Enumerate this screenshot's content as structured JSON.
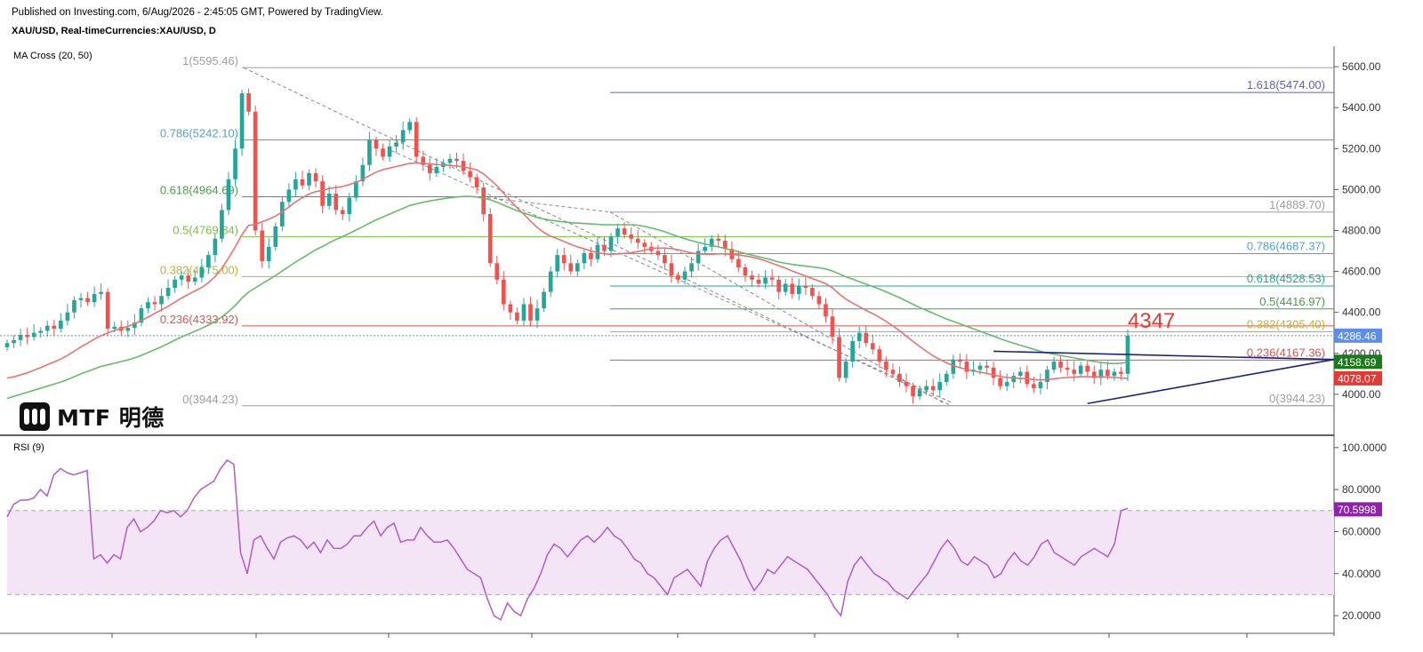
{
  "header": {
    "published": "Published on Investing.com, 6/Aug/2026 - 2:45:05 GMT, Powered by TradingView.",
    "symbol": "XAU/USD, Real-timeCurrencies:XAU/USD, D"
  },
  "logo": {
    "text": "MTF 明德"
  },
  "colors": {
    "up": "#26a69a",
    "down": "#ef5350",
    "ma20": "#e57373",
    "ma50": "#66bb6a",
    "trendline": "#1a237e",
    "rsi": "#b05cc6",
    "rsi_band": "#f3e5f5"
  },
  "chart_data": [
    {
      "type": "candlestick",
      "indicator_label": "MA Cross (20, 50)",
      "ylim": [
        3800,
        5700
      ],
      "y_ticks": [
        {
          "v": 5600,
          "label": "5600.00"
        },
        {
          "v": 5400,
          "label": "5400.00"
        },
        {
          "v": 5200,
          "label": "5200.00"
        },
        {
          "v": 5000,
          "label": "5000.00"
        },
        {
          "v": 4800,
          "label": "4800.00"
        },
        {
          "v": 4600,
          "label": "4600.00"
        },
        {
          "v": 4400,
          "label": "4400.00"
        },
        {
          "v": 4200,
          "label": "4200.00"
        },
        {
          "v": 4000,
          "label": "4000.00"
        }
      ],
      "price_badges": [
        {
          "v": 4286.46,
          "label": "4286.46",
          "color": "#5b8def"
        },
        {
          "v": 4158.69,
          "label": "4158.69",
          "color": "#1b7a1b"
        },
        {
          "v": 4078.07,
          "label": "4078.07",
          "color": "#e53935"
        }
      ],
      "annotation": {
        "text": "4347",
        "value": 4347,
        "color": "#e53935"
      },
      "fib_left": [
        {
          "ratio": "1",
          "value": 5595.46,
          "text": "1(5595.46)",
          "color": "#9e9e9e"
        },
        {
          "ratio": "0.786",
          "value": 5242.1,
          "text": "0.786(5242.10)",
          "color": "#4fa3d1"
        },
        {
          "ratio": "0.618",
          "value": 4964.69,
          "text": "0.618(4964.69)",
          "color": "#43a047"
        },
        {
          "ratio": "0.5",
          "value": 4769.84,
          "text": "0.5(4769.84)",
          "color": "#76c043"
        },
        {
          "ratio": "0.382",
          "value": 4575.0,
          "text": "0.382(4575.00)",
          "color": "#b7b53a"
        },
        {
          "ratio": "0.236",
          "value": 4333.92,
          "text": "0.236(4333.92)",
          "color": "#d9534f"
        },
        {
          "ratio": "0",
          "value": 3944.23,
          "text": "0(3944.23)",
          "color": "#9e9e9e"
        }
      ],
      "fib_right": [
        {
          "ratio": "1.618",
          "value": 5474.0,
          "text": "1.618(5474.00)",
          "color": "#5c5fc6"
        },
        {
          "ratio": "1",
          "value": 4889.7,
          "text": "1(4889.70)",
          "color": "#9e9e9e"
        },
        {
          "ratio": "0.786",
          "value": 4687.37,
          "text": "0.786(4687.37)",
          "color": "#4fa3d1"
        },
        {
          "ratio": "0.618",
          "value": 4528.53,
          "text": "0.618(4528.53)",
          "color": "#26a69a"
        },
        {
          "ratio": "0.5",
          "value": 4416.97,
          "text": "0.5(4416.97)",
          "color": "#43a047"
        },
        {
          "ratio": "0.382",
          "value": 4305.4,
          "text": "0.382(4305.40)",
          "color": "#b7b53a"
        },
        {
          "ratio": "0.236",
          "value": 4167.36,
          "text": "0.236(4167.36)",
          "color": "#d9534f"
        },
        {
          "ratio": "0",
          "value": 3944.23,
          "text": "0(3944.23)",
          "color": "#9e9e9e"
        }
      ],
      "closes": [
        4250,
        4265,
        4290,
        4280,
        4300,
        4310,
        4335,
        4320,
        4360,
        4400,
        4460,
        4470,
        4450,
        4490,
        4500,
        4320,
        4330,
        4310,
        4325,
        4350,
        4420,
        4450,
        4440,
        4480,
        4520,
        4560,
        4580,
        4550,
        4570,
        4620,
        4680,
        4760,
        4900,
        5050,
        5200,
        5470,
        5380,
        4800,
        4650,
        4720,
        4820,
        4940,
        5000,
        5050,
        5020,
        5080,
        5040,
        4920,
        4980,
        4900,
        4880,
        4960,
        5040,
        5120,
        5240,
        5200,
        5160,
        5210,
        5230,
        5290,
        5330,
        5160,
        5120,
        5080,
        5110,
        5130,
        5150,
        5140,
        5090,
        5060,
        5010,
        4880,
        4640,
        4560,
        4440,
        4400,
        4360,
        4440,
        4360,
        4420,
        4500,
        4600,
        4680,
        4640,
        4600,
        4640,
        4690,
        4660,
        4730,
        4700,
        4770,
        4810,
        4780,
        4760,
        4740,
        4720,
        4700,
        4680,
        4640,
        4580,
        4560,
        4600,
        4640,
        4700,
        4720,
        4760,
        4750,
        4710,
        4660,
        4620,
        4580,
        4560,
        4540,
        4570,
        4560,
        4500,
        4540,
        4490,
        4530,
        4520,
        4480,
        4440,
        4380,
        4280,
        4080,
        4160,
        4260,
        4300,
        4250,
        4220,
        4160,
        4120,
        4100,
        4060,
        4040,
        3990,
        4020,
        4040,
        4020,
        4060,
        4100,
        4170,
        4160,
        4110,
        4120,
        4140,
        4130,
        4080,
        4040,
        4060,
        4090,
        4110,
        4050,
        4030,
        4060,
        4120,
        4160,
        4130,
        4120,
        4100,
        4140,
        4110,
        4080,
        4120,
        4090,
        4110,
        4100,
        4286
      ],
      "ohlc_note": "daily OHLC estimated visually; last candle high ~4347",
      "ma20": [
        4080,
        4085,
        4095,
        4105,
        4118,
        4130,
        4145,
        4158,
        4172,
        4190,
        4210,
        4232,
        4250,
        4270,
        4286,
        4300,
        4312,
        4322,
        4332,
        4345,
        4360,
        4377,
        4395,
        4412,
        4430,
        4450,
        4470,
        4488,
        4505,
        4522,
        4545,
        4575,
        4615,
        4665,
        4720,
        4780,
        4825,
        4830,
        4842,
        4855,
        4870,
        4890,
        4915,
        4940,
        4960,
        4978,
        4990,
        4995,
        5005,
        5010,
        5015,
        5024,
        5035,
        5050,
        5068,
        5085,
        5097,
        5105,
        5112,
        5120,
        5128,
        5130,
        5128,
        5125,
        5122,
        5120,
        5118,
        5115,
        5110,
        5104,
        5096,
        5076,
        5048,
        5018,
        4982,
        4946,
        4910,
        4880,
        4846,
        4815,
        4790,
        4772,
        4760,
        4746,
        4732,
        4720,
        4710,
        4700,
        4692,
        4686,
        4684,
        4686,
        4688,
        4692,
        4697,
        4704,
        4712,
        4714,
        4714,
        4712,
        4706,
        4698,
        4690,
        4686,
        4684,
        4684,
        4686,
        4686,
        4683,
        4680,
        4676,
        4670,
        4662,
        4652,
        4640,
        4628,
        4616,
        4602,
        4590,
        4578,
        4565,
        4553,
        4540,
        4520,
        4490,
        4465,
        4445,
        4428,
        4410,
        4394,
        4376,
        4356,
        4334,
        4310,
        4284,
        4258,
        4234,
        4210,
        4188,
        4170,
        4154,
        4140,
        4130,
        4122,
        4114,
        4108,
        4102,
        4094,
        4088,
        4082,
        4080,
        4078,
        4076,
        4072,
        4070,
        4072,
        4076,
        4080,
        4082,
        4084,
        4086,
        4086,
        4085,
        4086,
        4084,
        4083,
        4080,
        4078
      ],
      "ma50": [
        3980,
        3990,
        4000,
        4010,
        4020,
        4030,
        4040,
        4050,
        4060,
        4072,
        4086,
        4100,
        4112,
        4124,
        4136,
        4144,
        4152,
        4160,
        4168,
        4178,
        4190,
        4204,
        4218,
        4232,
        4248,
        4264,
        4280,
        4294,
        4308,
        4322,
        4338,
        4356,
        4378,
        4404,
        4434,
        4470,
        4500,
        4520,
        4540,
        4560,
        4580,
        4602,
        4624,
        4646,
        4666,
        4686,
        4706,
        4722,
        4740,
        4756,
        4770,
        4786,
        4802,
        4818,
        4836,
        4852,
        4866,
        4880,
        4894,
        4908,
        4922,
        4930,
        4938,
        4944,
        4950,
        4955,
        4960,
        4964,
        4966,
        4966,
        4964,
        4958,
        4950,
        4938,
        4924,
        4910,
        4896,
        4886,
        4874,
        4864,
        4856,
        4850,
        4846,
        4842,
        4838,
        4836,
        4834,
        4832,
        4830,
        4828,
        4828,
        4828,
        4828,
        4828,
        4826,
        4820,
        4812,
        4804,
        4794,
        4782,
        4770,
        4760,
        4750,
        4742,
        4734,
        4726,
        4720,
        4712,
        4704,
        4696,
        4688,
        4680,
        4672,
        4664,
        4656,
        4646,
        4640,
        4634,
        4630,
        4626,
        4622,
        4618,
        4612,
        4602,
        4588,
        4574,
        4562,
        4550,
        4538,
        4526,
        4514,
        4500,
        4486,
        4472,
        4456,
        4440,
        4424,
        4410,
        4396,
        4382,
        4368,
        4356,
        4344,
        4332,
        4320,
        4308,
        4296,
        4284,
        4272,
        4260,
        4250,
        4240,
        4230,
        4220,
        4210,
        4202,
        4196,
        4190,
        4184,
        4178,
        4172,
        4166,
        4160,
        4156,
        4152,
        4150,
        4152,
        4158
      ],
      "triangle_lines": [
        {
          "from": {
            "i": 147,
            "v": 4210
          },
          "to": {
            "i": 174,
            "v": 4180
          }
        },
        {
          "from": {
            "i": 161,
            "v": 3955
          },
          "to": {
            "i": 174,
            "v": 4170
          }
        }
      ]
    },
    {
      "type": "line",
      "indicator_label": "RSI (9)",
      "ylim": [
        12,
        105
      ],
      "band": [
        30,
        70
      ],
      "y_ticks": [
        {
          "v": 100,
          "label": "100.0000"
        },
        {
          "v": 80,
          "label": "80.0000"
        },
        {
          "v": 60,
          "label": "60.0000"
        },
        {
          "v": 40,
          "label": "40.0000"
        },
        {
          "v": 20,
          "label": "20.0000"
        }
      ],
      "last_badge": {
        "v": 70.5998,
        "label": "70.5998",
        "color": "#8e24aa"
      },
      "values": [
        67,
        73,
        75,
        75,
        76,
        80,
        77,
        87,
        90,
        88,
        87,
        88,
        89,
        47,
        49,
        45,
        49,
        47,
        62,
        66,
        60,
        62,
        65,
        70,
        69,
        70,
        67,
        70,
        76,
        80,
        82,
        84,
        90,
        94,
        92,
        50,
        40,
        56,
        58,
        52,
        47,
        55,
        57,
        58,
        56,
        52,
        55,
        50,
        56,
        52,
        52,
        54,
        58,
        58,
        62,
        65,
        58,
        62,
        64,
        55,
        56,
        56,
        62,
        58,
        55,
        55,
        56,
        52,
        47,
        42,
        40,
        38,
        28,
        20,
        18,
        26,
        22,
        20,
        28,
        33,
        40,
        49,
        54,
        52,
        48,
        52,
        56,
        58,
        55,
        58,
        62,
        58,
        56,
        52,
        47,
        45,
        40,
        38,
        34,
        30,
        38,
        40,
        42,
        38,
        34,
        46,
        52,
        56,
        58,
        52,
        46,
        38,
        32,
        36,
        42,
        40,
        44,
        48,
        46,
        44,
        42,
        38,
        34,
        30,
        24,
        20,
        36,
        44,
        48,
        44,
        40,
        38,
        36,
        32,
        30,
        28,
        32,
        36,
        40,
        46,
        52,
        56,
        52,
        46,
        44,
        48,
        46,
        44,
        38,
        40,
        46,
        50,
        46,
        44,
        48,
        54,
        56,
        50,
        48,
        46,
        44,
        48,
        50,
        52,
        50,
        48,
        54,
        70,
        71
      ],
      "x_tick_positions": [
        126,
        288,
        437,
        598,
        762,
        916,
        1077,
        1247,
        1402
      ]
    }
  ]
}
